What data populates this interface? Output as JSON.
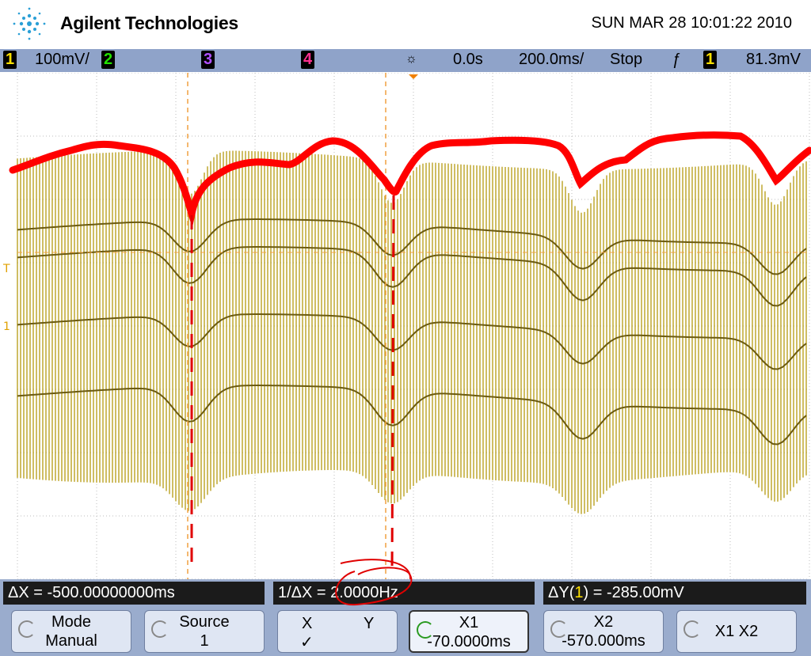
{
  "header": {
    "brand": "Agilent Technologies",
    "datetime": "SUN MAR 28 10:01:22 2010"
  },
  "status": {
    "ch1": "1",
    "ch1_scale": "100mV/",
    "ch2": "2",
    "ch3": "3",
    "ch4": "4",
    "time_delay": "0.0s",
    "time_scale": "200.0ms/",
    "run_state": "Stop",
    "trigger_source": "1",
    "trigger_level": "81.3mV"
  },
  "screen": {
    "trigger_marker": "T",
    "ground_marker": "1"
  },
  "measurements": {
    "delta_x": "ΔX = -500.00000000ms",
    "inv_delta_x": "1/ΔX = 2.0000Hz",
    "delta_y_prefix": "ΔY(",
    "delta_y_channel": "1",
    "delta_y_suffix": ") = -285.00mV"
  },
  "softkeys": [
    {
      "label": "Mode",
      "value": "Manual"
    },
    {
      "label": "Source",
      "value": "1"
    },
    {
      "label": "X",
      "value": "✓",
      "alt": "Y"
    },
    {
      "label": "X1",
      "value": "-70.0000ms"
    },
    {
      "label": "X2",
      "value": "-570.000ms"
    },
    {
      "label": "X1 X2"
    }
  ]
}
